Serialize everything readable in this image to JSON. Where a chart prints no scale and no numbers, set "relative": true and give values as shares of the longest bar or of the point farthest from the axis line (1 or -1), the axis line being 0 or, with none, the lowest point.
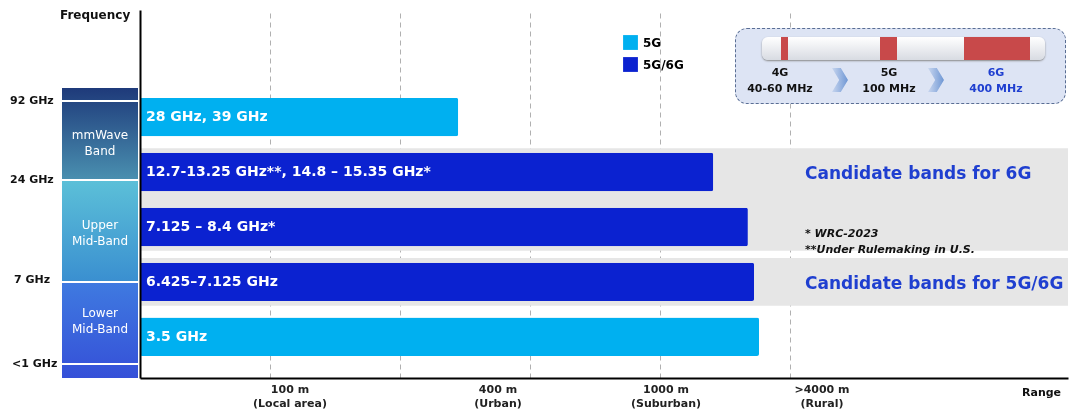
{
  "chart_data": {
    "type": "bar",
    "orientation": "horizontal",
    "relative": true,
    "grid": "x",
    "categories": [
      "28 GHz, 39 GHz",
      "12.7-13.25 GHz**, 14.8 – 15.35 GHz*",
      "7.125 – 8.4 GHz*",
      "6.425–7.125 GHz",
      "3.5 GHz"
    ],
    "series": [
      {
        "name": "5G",
        "color": "#00b0f0",
        "values": [
          0.514,
          null,
          null,
          null,
          1
        ]
      },
      {
        "name": "5G/6G",
        "color": "#0b22d0",
        "values": [
          null,
          0.926,
          0.982,
          0.992,
          null
        ]
      }
    ],
    "legend": "top",
    "bands": [
      {
        "axis": "y",
        "from": "12.7-13.25 GHz**, 14.8 – 15.35 GHz*",
        "to": "7.125 – 8.4 GHz*",
        "label": "Candidate bands for 6G",
        "color": "#e6e6e6"
      },
      {
        "axis": "y",
        "from": "6.425–7.125 GHz",
        "to": "6.425–7.125 GHz",
        "label": "Candidate bands for 5G/6G",
        "color": "#e6e6e6"
      }
    ],
    "annotations": [
      "92 GHz",
      "24 GHz",
      "7 GHz",
      "<1 GHz",
      "mmWave Band",
      "Upper Mid-Band",
      "Lower Mid-Band",
      "4G",
      "40-60 MHz",
      "5G",
      "100 MHz",
      "6G",
      "400 MHz",
      "* WRC-2023",
      "**Under Rulemaking in U.S.",
      "100 m\n(Local area)",
      "400 m\n(Urban)",
      "1000 m\n(Suburban)",
      ">4000 m\n(Rural)",
      "Frequency",
      "Range"
    ]
  }
}
